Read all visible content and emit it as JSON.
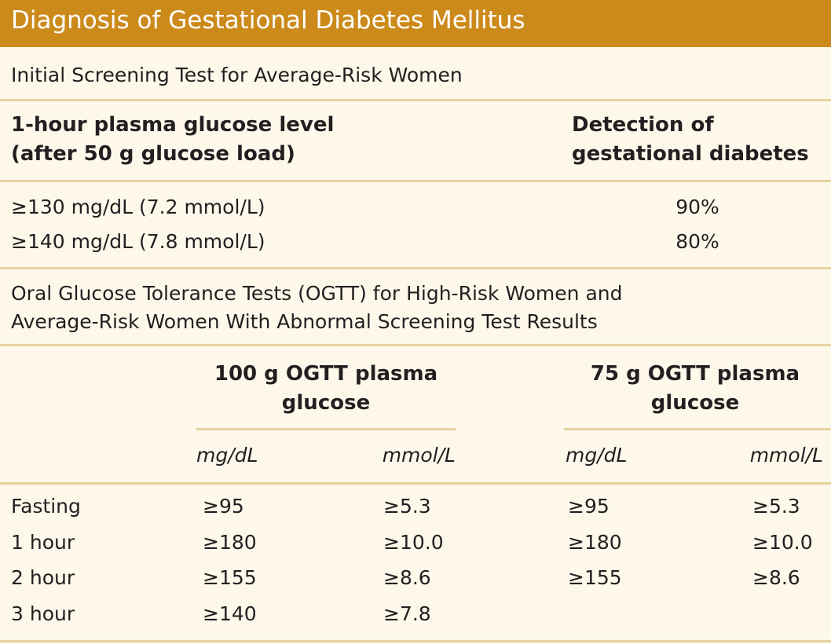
{
  "title": "Diagnosis of Gestational Diabetes Mellitus",
  "screening": {
    "section_title": "Initial Screening Test for Average-Risk Women",
    "col1_header": [
      "1-hour plasma glucose level",
      "(after 50 g glucose load)"
    ],
    "col2_header": [
      "Detection of",
      "gestational diabetes"
    ],
    "rows": [
      {
        "level": "≥130 mg/dL (7.2 mmol/L)",
        "detection": "90%"
      },
      {
        "level": "≥140 mg/dL (7.8 mmol/L)",
        "detection": "80%"
      }
    ]
  },
  "ogtt": {
    "section_title": [
      "Oral Glucose Tolerance Tests (OGTT) for High-Risk Women and",
      "Average-Risk Women With Abnormal Screening Test Results"
    ],
    "group1_header": [
      "100 g OGTT plasma",
      "glucose"
    ],
    "group2_header": [
      "75 g OGTT plasma",
      "glucose"
    ],
    "units": {
      "mgdl": "mg/dL",
      "mmol": "mmol/L"
    },
    "rows": [
      {
        "time": "Fasting",
        "g100_mg": "≥95",
        "g100_mmol": "≥5.3",
        "g75_mg": "≥95",
        "g75_mmol": "≥5.3"
      },
      {
        "time": "1 hour",
        "g100_mg": "≥180",
        "g100_mmol": "≥10.0",
        "g75_mg": "≥180",
        "g75_mmol": "≥10.0"
      },
      {
        "time": "2 hour",
        "g100_mg": "≥155",
        "g100_mmol": "≥8.6",
        "g75_mg": "≥155",
        "g75_mmol": "≥8.6"
      },
      {
        "time": "3 hour",
        "g100_mg": "≥140",
        "g100_mmol": "≥7.8",
        "g75_mg": "",
        "g75_mmol": ""
      }
    ]
  }
}
